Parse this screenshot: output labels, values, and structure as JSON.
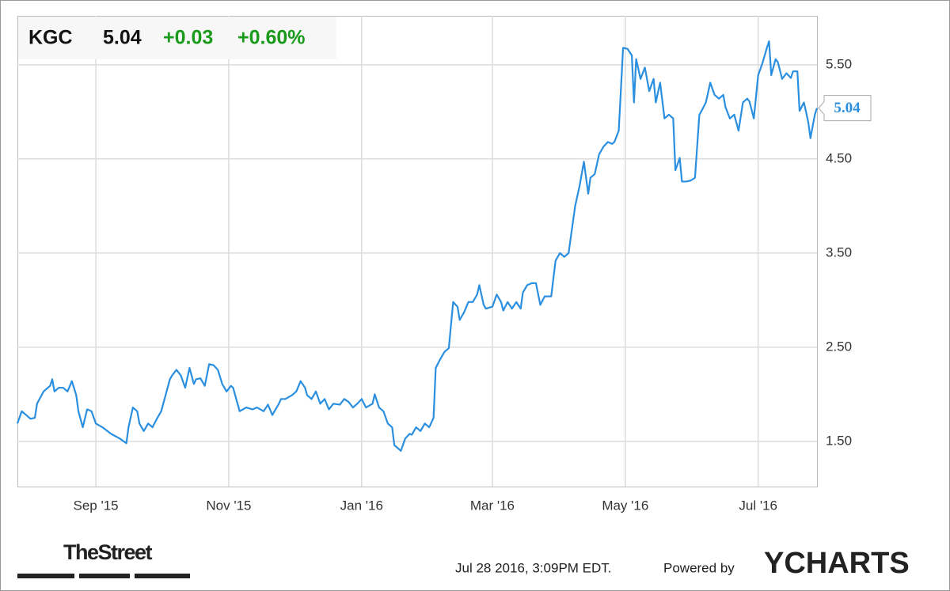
{
  "quote": {
    "ticker": "KGC",
    "price": "5.04",
    "change": "+0.03",
    "change_percent": "+0.60%"
  },
  "footer": {
    "source": "TheStreet",
    "timestamp": "Jul 28 2016, 3:09PM EDT.",
    "powered_by": "Powered by",
    "brand": "YCHARTS"
  },
  "chart_data": {
    "type": "line",
    "color": "#2b8fe0",
    "grid": true,
    "xlim": [
      0,
      367
    ],
    "xticks": [
      {
        "value": 36,
        "label": "Sep '15"
      },
      {
        "value": 97,
        "label": "Nov '15"
      },
      {
        "value": 158,
        "label": "Jan '16"
      },
      {
        "value": 218,
        "label": "Mar '16"
      },
      {
        "value": 279,
        "label": "May '16"
      },
      {
        "value": 340,
        "label": "Jul '16"
      }
    ],
    "ylim": [
      1.02,
      6.02
    ],
    "yticks": [
      {
        "value": 1.5,
        "label": "1.50"
      },
      {
        "value": 2.5,
        "label": "2.50"
      },
      {
        "value": 3.5,
        "label": "3.50"
      },
      {
        "value": 4.5,
        "label": "4.50"
      },
      {
        "value": 5.5,
        "label": "5.50"
      }
    ],
    "x": [
      0,
      2,
      4,
      6,
      8,
      9,
      12,
      15,
      16,
      17,
      19,
      21,
      23,
      25,
      27,
      28,
      30,
      32,
      34,
      36,
      39,
      43,
      47,
      50,
      51,
      53,
      55,
      56,
      58,
      60,
      62,
      64,
      66,
      68,
      70,
      71,
      73,
      75,
      77,
      79,
      81,
      82,
      84,
      86,
      88,
      90,
      92,
      94,
      96,
      98,
      99,
      102,
      105,
      108,
      110,
      113,
      115,
      117,
      120,
      121,
      123,
      126,
      128,
      130,
      132,
      133,
      135,
      137,
      139,
      141,
      143,
      145,
      148,
      150,
      152,
      154,
      156,
      158,
      160,
      163,
      164,
      166,
      168,
      170,
      172,
      173,
      176,
      178,
      180,
      181,
      183,
      185,
      187,
      189,
      191,
      192,
      194,
      196,
      198,
      200,
      202,
      203,
      205,
      207,
      209,
      211,
      212,
      214,
      215,
      218,
      220,
      222,
      223,
      225,
      227,
      229,
      231,
      232,
      234,
      236,
      238,
      240,
      242,
      243,
      245,
      247,
      249,
      251,
      253,
      254,
      256,
      258,
      260,
      262,
      263,
      265,
      267,
      269,
      271,
      273,
      274,
      276,
      278,
      280,
      282,
      283,
      284,
      286,
      288,
      290,
      292,
      293,
      295,
      297,
      299,
      301,
      302,
      304,
      305,
      307,
      309,
      311,
      313,
      314,
      316,
      318,
      320,
      322,
      324,
      325,
      327,
      329,
      331,
      333,
      335,
      336,
      338,
      340,
      342,
      344,
      345,
      346,
      348,
      349,
      351,
      353,
      355,
      356,
      358,
      359,
      361,
      363,
      364,
      366,
      367
    ],
    "values": [
      1.69,
      1.82,
      1.78,
      1.74,
      1.75,
      1.9,
      2.03,
      2.09,
      2.16,
      2.03,
      2.07,
      2.07,
      2.03,
      2.14,
      1.99,
      1.82,
      1.65,
      1.84,
      1.82,
      1.69,
      1.65,
      1.58,
      1.53,
      1.48,
      1.65,
      1.86,
      1.82,
      1.69,
      1.61,
      1.69,
      1.65,
      1.74,
      1.82,
      1.99,
      2.16,
      2.2,
      2.26,
      2.2,
      2.07,
      2.28,
      2.11,
      2.16,
      2.17,
      2.09,
      2.32,
      2.31,
      2.26,
      2.11,
      2.03,
      2.09,
      2.07,
      1.82,
      1.86,
      1.84,
      1.86,
      1.82,
      1.89,
      1.78,
      1.9,
      1.95,
      1.95,
      1.99,
      2.03,
      2.14,
      2.07,
      1.99,
      1.95,
      2.03,
      1.9,
      1.95,
      1.84,
      1.9,
      1.89,
      1.95,
      1.92,
      1.86,
      1.9,
      1.95,
      1.86,
      1.9,
      2.0,
      1.86,
      1.82,
      1.69,
      1.65,
      1.46,
      1.4,
      1.53,
      1.58,
      1.57,
      1.65,
      1.61,
      1.69,
      1.65,
      1.75,
      2.28,
      2.37,
      2.45,
      2.49,
      2.98,
      2.93,
      2.79,
      2.87,
      2.98,
      2.98,
      3.06,
      3.16,
      2.95,
      2.91,
      2.93,
      3.06,
      2.98,
      2.89,
      2.98,
      2.91,
      2.98,
      2.91,
      3.08,
      3.16,
      3.18,
      3.18,
      2.95,
      3.04,
      3.04,
      3.04,
      3.42,
      3.5,
      3.46,
      3.5,
      3.67,
      4.0,
      4.21,
      4.47,
      4.13,
      4.3,
      4.34,
      4.55,
      4.63,
      4.68,
      4.66,
      4.68,
      4.8,
      5.68,
      5.67,
      5.6,
      5.1,
      5.56,
      5.35,
      5.47,
      5.22,
      5.35,
      5.1,
      5.31,
      4.93,
      4.97,
      4.93,
      4.38,
      4.51,
      4.26,
      4.26,
      4.27,
      4.3,
      4.97,
      5.01,
      5.1,
      5.31,
      5.18,
      5.14,
      5.18,
      5.05,
      4.93,
      4.97,
      4.8,
      5.1,
      5.14,
      5.11,
      4.93,
      5.39,
      5.52,
      5.68,
      5.75,
      5.39,
      5.56,
      5.53,
      5.35,
      5.41,
      5.36,
      5.43,
      5.43,
      5.01,
      5.1,
      4.89,
      4.72,
      4.97,
      5.04
    ]
  }
}
